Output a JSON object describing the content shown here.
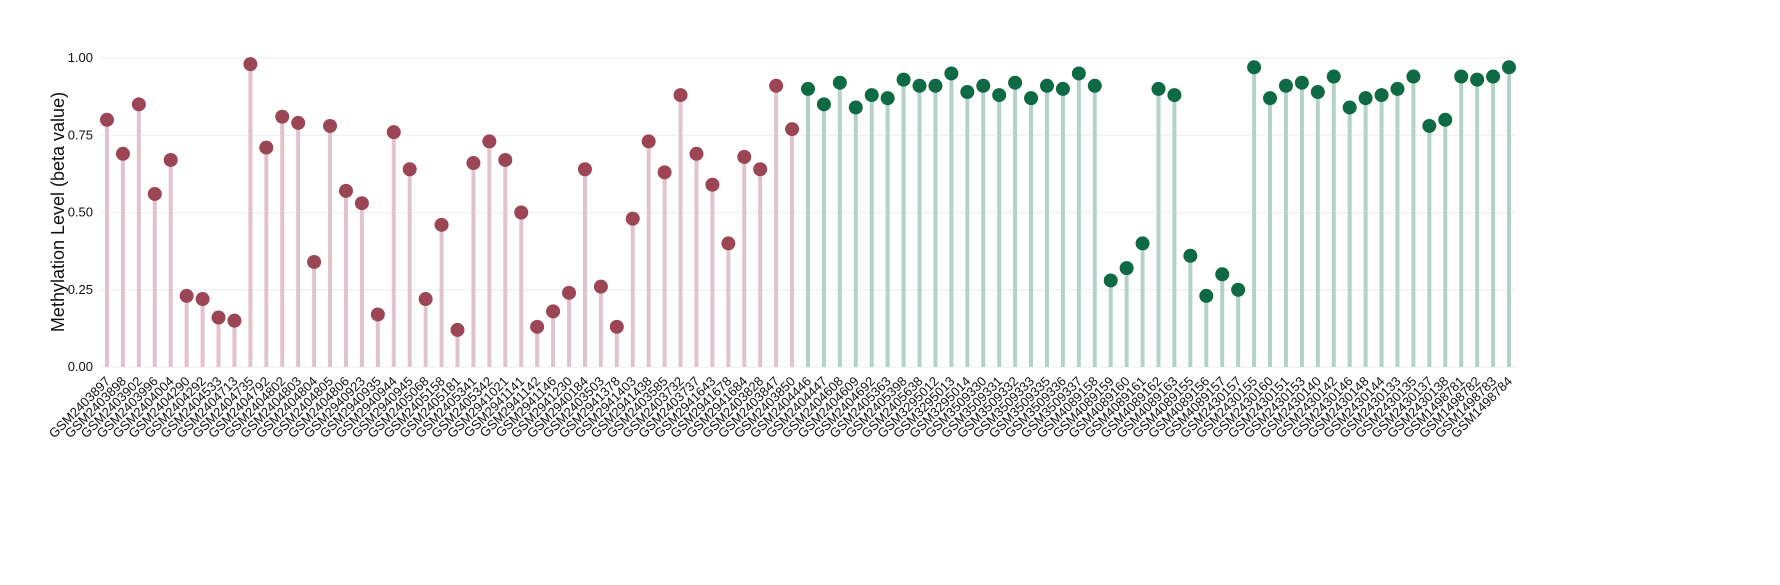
{
  "chart_data": {
    "type": "lollipop",
    "y_label": "Methylation Level (beta value)",
    "ylim": [
      0,
      1
    ],
    "yticks": [
      {
        "value": 0,
        "label": "0.00"
      },
      {
        "value": 0.25,
        "label": "0.25"
      },
      {
        "value": 0.5,
        "label": "0.50"
      },
      {
        "value": 0.75,
        "label": "0.75"
      },
      {
        "value": 1,
        "label": "1.00"
      }
    ],
    "grid": true,
    "categories": [
      "GSM2403897",
      "GSM2403898",
      "GSM2403902",
      "GSM2403996",
      "GSM2404004",
      "GSM2404290",
      "GSM2404292",
      "GSM2404533",
      "GSM2404713",
      "GSM2404735",
      "GSM2404792",
      "GSM2404802",
      "GSM2404803",
      "GSM2404804",
      "GSM2404805",
      "GSM2404806",
      "GSM2940923",
      "GSM2940935",
      "GSM2940944",
      "GSM2940945",
      "GSM2405068",
      "GSM2405158",
      "GSM2405181",
      "GSM2405341",
      "GSM2405342",
      "GSM2941021",
      "GSM2941141",
      "GSM2941142",
      "GSM2941146",
      "GSM2941230",
      "GSM2940184",
      "GSM2403503",
      "GSM2941378",
      "GSM2941403",
      "GSM2941438",
      "GSM2403585",
      "GSM2403732",
      "GSM2403737",
      "GSM2941643",
      "GSM2941678",
      "GSM2941684",
      "GSM2403828",
      "GSM2403847",
      "GSM2403850",
      "GSM2404446",
      "GSM2404447",
      "GSM2404608",
      "GSM2404609",
      "GSM2404692",
      "GSM2405363",
      "GSM2405398",
      "GSM2405638",
      "GSM3295012",
      "GSM3295013",
      "GSM3295014",
      "GSM3509330",
      "GSM3509331",
      "GSM3509332",
      "GSM3509333",
      "GSM3509335",
      "GSM3509336",
      "GSM3509337",
      "GSM4089158",
      "GSM4089159",
      "GSM4089160",
      "GSM4089161",
      "GSM4089162",
      "GSM4089163",
      "GSM4089155",
      "GSM4089156",
      "GSM4089157",
      "GSM2430157",
      "GSM2430155",
      "GSM2430160",
      "GSM2430151",
      "GSM2430153",
      "GSM2430140",
      "GSM2430142",
      "GSM2430146",
      "GSM2430148",
      "GSM2430144",
      "GSM2430133",
      "GSM2430135",
      "GSM2430137",
      "GSM2430138",
      "GSM1498781",
      "GSM1498782",
      "GSM1498783",
      "GSM1498784"
    ],
    "series": [
      {
        "color": "#9c4555",
        "stem_color": "#e3c3cb",
        "values": [
          0.8,
          0.69,
          0.85,
          0.56,
          0.67,
          0.23,
          0.22,
          0.16,
          0.15,
          0.98,
          0.71,
          0.81,
          0.79,
          0.34,
          0.78,
          0.57,
          0.53,
          0.17,
          0.76,
          0.64,
          0.22,
          0.46,
          0.12,
          0.66,
          0.73,
          0.67,
          0.5,
          0.13,
          0.18,
          0.24,
          0.64,
          0.26,
          0.13,
          0.48,
          0.73,
          0.63,
          0.88,
          0.69,
          0.59,
          0.4,
          0.68,
          0.64,
          0.91,
          0.77,
          null,
          null,
          null,
          null,
          null,
          null,
          null,
          null,
          null,
          null,
          null,
          null,
          null,
          null,
          null,
          null,
          null,
          null,
          null,
          null,
          null,
          null,
          null,
          null,
          null,
          null,
          null,
          null,
          null,
          null,
          null,
          null,
          null,
          null,
          null,
          null,
          null,
          null,
          null,
          null,
          null,
          null,
          null,
          null,
          null
        ]
      },
      {
        "color": "#0d6a44",
        "stem_color": "#b3d3c6",
        "values": [
          null,
          null,
          null,
          null,
          null,
          null,
          null,
          null,
          null,
          null,
          null,
          null,
          null,
          null,
          null,
          null,
          null,
          null,
          null,
          null,
          null,
          null,
          null,
          null,
          null,
          null,
          null,
          null,
          null,
          null,
          null,
          null,
          null,
          null,
          null,
          null,
          null,
          null,
          null,
          null,
          null,
          null,
          null,
          null,
          0.9,
          0.85,
          0.92,
          0.84,
          0.88,
          0.87,
          0.93,
          0.91,
          0.91,
          0.95,
          0.89,
          0.91,
          0.88,
          0.92,
          0.87,
          0.91,
          0.9,
          0.95,
          0.91,
          0.28,
          0.32,
          0.4,
          0.9,
          0.88,
          0.36,
          0.23,
          0.3,
          0.25,
          0.97,
          0.87,
          0.91,
          0.92,
          0.89,
          0.94,
          0.84,
          0.87,
          0.88,
          0.9,
          0.94,
          0.78,
          0.8,
          0.94,
          0.93,
          0.94,
          0.97
        ]
      }
    ]
  }
}
